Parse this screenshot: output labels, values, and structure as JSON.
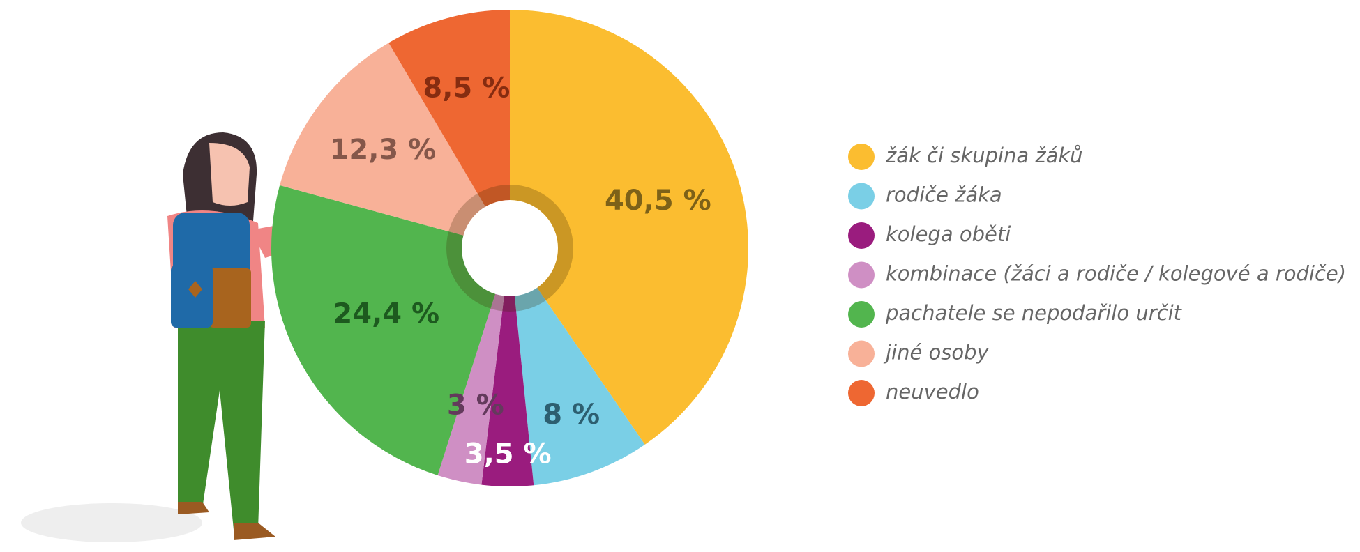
{
  "chart_data": {
    "type": "pie",
    "categories": [
      "žák či skupina žáků",
      "rodiče žáka",
      "kolega oběti",
      "kombinace (žáci a rodiče / kolegové a rodiče)",
      "pachatele se nepodařilo určit",
      "jiné osoby",
      "neuvedlo"
    ],
    "values": [
      40.5,
      8,
      3.5,
      3,
      24.4,
      12.3,
      8.5
    ],
    "value_labels": [
      "40,5 %",
      "8 %",
      "3,5 %",
      "3 %",
      "24,4 %",
      "12,3 %",
      "8,5 %"
    ],
    "colors": [
      "#FBBD30",
      "#7ACFE6",
      "#9A1C7E",
      "#CF8FC4",
      "#52B54E",
      "#F8B198",
      "#EE6732"
    ],
    "label_colors": [
      "#7d6118",
      "#2d5f70",
      "#ffffff",
      "#633a5c",
      "#1d5a1f",
      "#85574a",
      "#862c10"
    ]
  }
}
